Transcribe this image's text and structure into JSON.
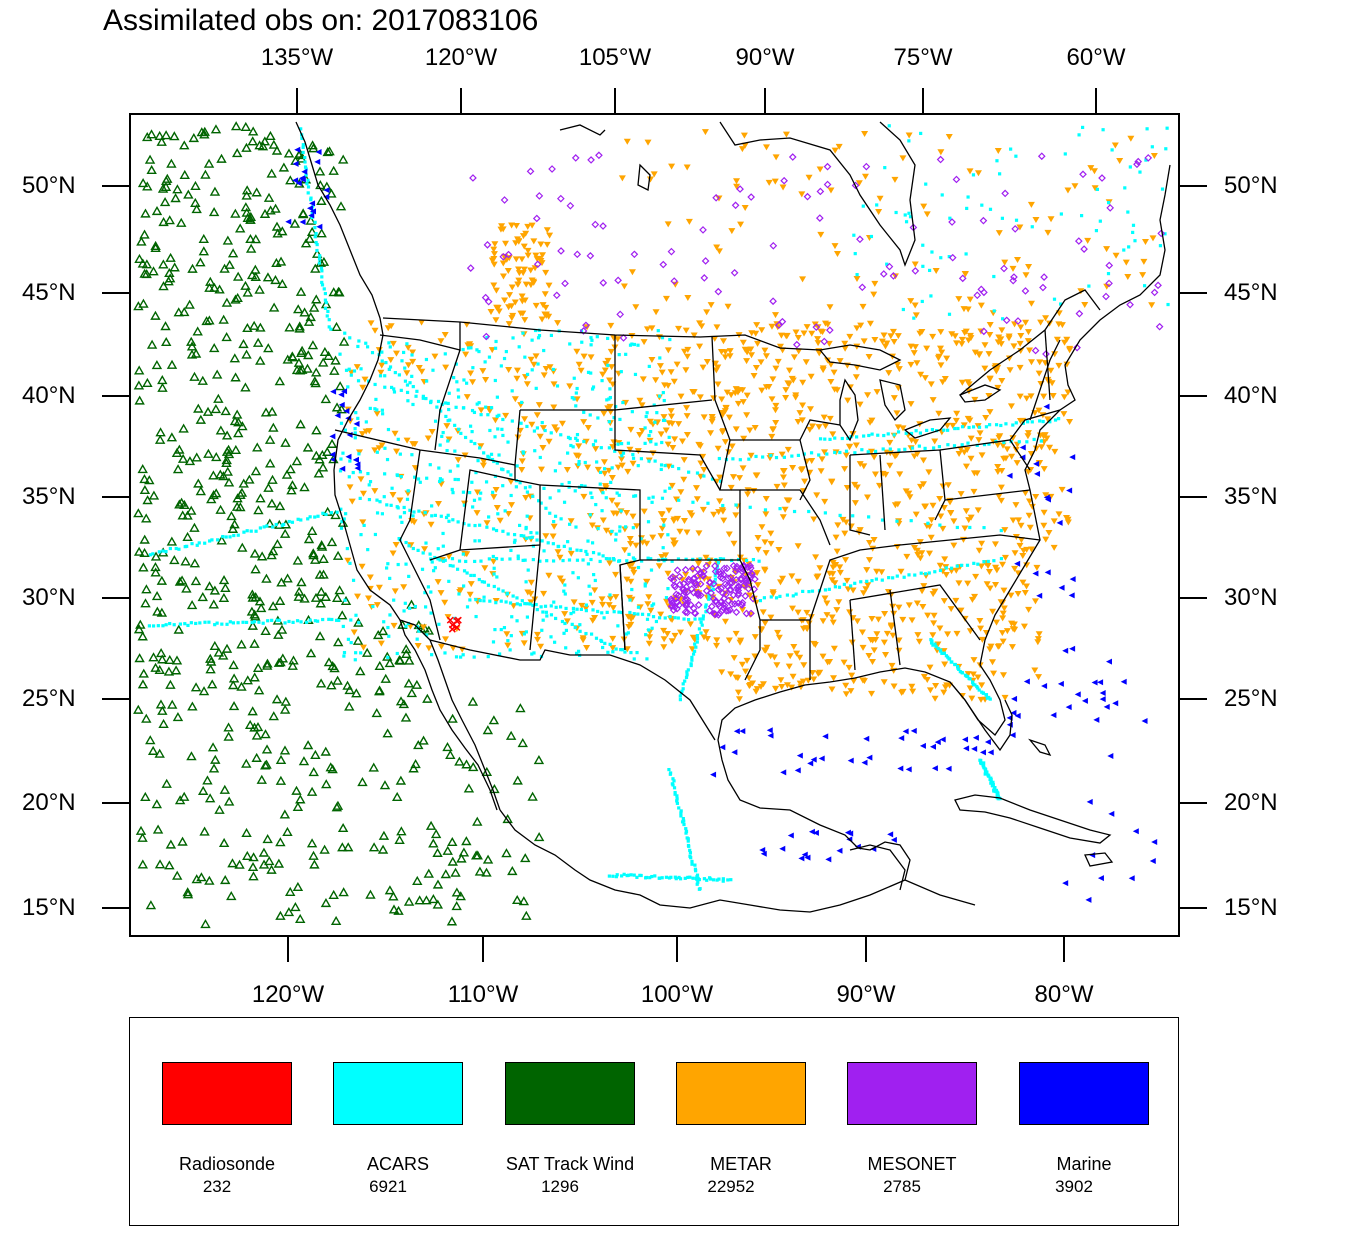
{
  "title": "Assimilated obs on: 2017083106",
  "axes": {
    "top_lon_labels": [
      "135°W",
      "120°W",
      "105°W",
      "90°W",
      "75°W",
      "60°W"
    ],
    "bottom_lon_labels": [
      "120°W",
      "110°W",
      "100°W",
      "90°W",
      "80°W"
    ],
    "lat_labels": [
      "50°N",
      "45°N",
      "40°N",
      "35°N",
      "30°N",
      "25°N",
      "20°N",
      "15°N"
    ]
  },
  "legend": [
    {
      "name": "Radiosonde",
      "count": "232",
      "color": "#ff0000"
    },
    {
      "name": "ACARS",
      "count": "6921",
      "color": "#00ffff"
    },
    {
      "name": "SAT Track Wind",
      "count": "1296",
      "color": "#006400"
    },
    {
      "name": "METAR",
      "count": "22952",
      "color": "#ffa500"
    },
    {
      "name": "MESONET",
      "count": "2785",
      "color": "#a020f0"
    },
    {
      "name": "Marine",
      "count": "3902",
      "color": "#0000ff"
    }
  ],
  "colors": {
    "radiosonde": "#ff0000",
    "acars": "#00ffff",
    "sat_track_wind": "#006400",
    "metar": "#ffa500",
    "mesonet": "#a020f0",
    "marine": "#0000ff"
  }
}
